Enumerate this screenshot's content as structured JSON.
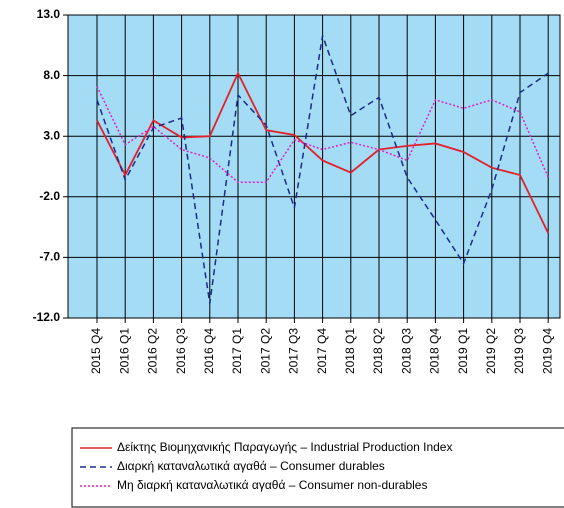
{
  "chart_data": {
    "type": "line",
    "categories": [
      "2015 Q4",
      "2016 Q1",
      "2016 Q2",
      "2016 Q3",
      "2016 Q4",
      "2017 Q1",
      "2017 Q2",
      "2017 Q3",
      "2017 Q4",
      "2018 Q1",
      "2018 Q2",
      "2018 Q3",
      "2018 Q4",
      "2019 Q1",
      "2019 Q2",
      "2019 Q3",
      "2019 Q4"
    ],
    "series": [
      {
        "name": "Δείκτης Βιομηχανικής Παραγωγής – Industrial Production Index",
        "color": "#e3202b",
        "dash": "solid",
        "values": [
          4.3,
          -0.2,
          4.3,
          2.9,
          3.0,
          8.2,
          3.5,
          3.1,
          1.0,
          0.0,
          1.9,
          2.2,
          2.4,
          1.7,
          0.4,
          -0.2,
          -5.0
        ]
      },
      {
        "name": "Διαρκή καταναλωτικά αγαθά – Consumer durables",
        "color": "#1b2b8a",
        "dash": "dashed",
        "values": [
          6.0,
          -0.6,
          3.7,
          4.5,
          -10.8,
          6.4,
          3.9,
          -2.9,
          11.3,
          4.7,
          6.2,
          -0.4,
          -3.9,
          -7.5,
          -1.4,
          6.6,
          8.2
        ]
      },
      {
        "name": "Μη διαρκή καταναλωτικά αγαθά – Consumer non-durables",
        "color": "#e020c8",
        "dash": "dotted",
        "values": [
          7.1,
          2.3,
          3.8,
          1.9,
          1.2,
          -0.8,
          -0.8,
          2.7,
          1.9,
          2.5,
          1.9,
          1.0,
          6.0,
          5.3,
          6.0,
          5.0,
          -0.4
        ]
      }
    ],
    "ylim": [
      -12,
      13
    ],
    "yticks": [
      {
        "value": 13,
        "label": "13.0"
      },
      {
        "value": 8,
        "label": "8.0"
      },
      {
        "value": 3,
        "label": "3.0"
      },
      {
        "value": -2,
        "label": "-2.0"
      },
      {
        "value": -7,
        "label": "-7.0"
      },
      {
        "value": -12,
        "label": "-12.0"
      }
    ],
    "grid": true,
    "plot_background": "#a3dcf4"
  }
}
